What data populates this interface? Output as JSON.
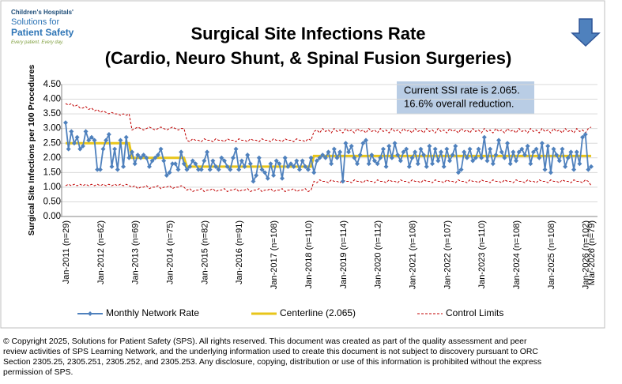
{
  "logo": {
    "line1": "Children's Hospitals'",
    "line2": "Solutions for",
    "line3": "Patient Safety",
    "tagline": "Every patient. Every day."
  },
  "chart_data": {
    "type": "line",
    "title": "Surgical Site Infections Rate",
    "subtitle": "(Cardio, Neuro Shunt, & Spinal Fusion Surgeries)",
    "y_label": "Surgical Site Infections  per 100 Procedures",
    "annotation": [
      "Current SSI rate is 2.065.",
      "16.6% overall reduction."
    ],
    "ylim": [
      0,
      4.5
    ],
    "yticks": [
      {
        "value": 0,
        "label": "0.00"
      },
      {
        "value": 0.5,
        "label": "0.50"
      },
      {
        "value": 1,
        "label": "1.00"
      },
      {
        "value": 1.5,
        "label": "1.50"
      },
      {
        "value": 2,
        "label": "2.00"
      },
      {
        "value": 2.5,
        "label": "2.50"
      },
      {
        "value": 3,
        "label": "3.00"
      },
      {
        "value": 3.5,
        "label": "3.50"
      },
      {
        "value": 4,
        "label": "4.00"
      },
      {
        "value": 4.5,
        "label": "4.50"
      }
    ],
    "grid": true,
    "categories": [
      "Jan-2011 (n=29)",
      null,
      null,
      null,
      null,
      null,
      null,
      null,
      null,
      null,
      null,
      null,
      "Jan-2012 (n=62)",
      null,
      null,
      null,
      null,
      null,
      null,
      null,
      null,
      null,
      null,
      null,
      "Jan-2013 (n=69)",
      null,
      null,
      null,
      null,
      null,
      null,
      null,
      null,
      null,
      null,
      null,
      "Jan-2014 (n=75)",
      null,
      null,
      null,
      null,
      null,
      null,
      null,
      null,
      null,
      null,
      null,
      "Jan-2015 (n=82)",
      null,
      null,
      null,
      null,
      null,
      null,
      null,
      null,
      null,
      null,
      null,
      "Jan-2016 (n=91)",
      null,
      null,
      null,
      null,
      null,
      null,
      null,
      null,
      null,
      null,
      null,
      "Jan-2017 (n=108)",
      null,
      null,
      null,
      null,
      null,
      null,
      null,
      null,
      null,
      null,
      null,
      "Jan-2018 (n=110)",
      null,
      null,
      null,
      null,
      null,
      null,
      null,
      null,
      null,
      null,
      null,
      "Jan-2019 (n=114)",
      null,
      null,
      null,
      null,
      null,
      null,
      null,
      null,
      null,
      null,
      null,
      "Jan-2020 (n=112)",
      null,
      null,
      null,
      null,
      null,
      null,
      null,
      null,
      null,
      null,
      null,
      "Jan-2021 (n=108)",
      null,
      null,
      null,
      null,
      null,
      null,
      null,
      null,
      null,
      null,
      null,
      "Jan-2022 (n=107)",
      null,
      null,
      null,
      null,
      null,
      null,
      null,
      null,
      null,
      null,
      null,
      "Jan-2023 (n=110)",
      null,
      null,
      null,
      null,
      null,
      null,
      null,
      null,
      null,
      null,
      null,
      "Jan-2024 (n=108)",
      null,
      null,
      null,
      null,
      null,
      null,
      null,
      null,
      null,
      null,
      null,
      "Jan-2025 (n=108)",
      null,
      null,
      null,
      null,
      null,
      null,
      null,
      null,
      null,
      null,
      null,
      "Jan-2026 (n=102)",
      null,
      "Mar-2026 (n=79)"
    ],
    "series": [
      {
        "name": "Monthly Network Rate",
        "color": "#4f81bd",
        "marker": "diamond",
        "values": [
          3.2,
          2.3,
          2.9,
          2.5,
          2.7,
          2.3,
          2.4,
          2.9,
          2.6,
          2.7,
          2.6,
          1.6,
          1.6,
          2.3,
          2.6,
          2.8,
          1.7,
          2.3,
          1.6,
          2.6,
          1.7,
          2.7,
          2.0,
          2.2,
          1.8,
          2.1,
          2.0,
          2.1,
          2.0,
          1.7,
          1.9,
          2.0,
          2.1,
          2.3,
          1.9,
          1.4,
          1.5,
          1.8,
          1.8,
          1.6,
          2.2,
          1.8,
          1.6,
          1.7,
          1.9,
          1.8,
          1.6,
          1.6,
          1.9,
          2.2,
          1.6,
          1.9,
          1.7,
          1.6,
          2.0,
          1.9,
          1.7,
          1.6,
          2.0,
          2.3,
          1.6,
          1.9,
          1.7,
          2.1,
          1.8,
          1.2,
          1.4,
          2.0,
          1.6,
          1.5,
          1.3,
          1.8,
          1.4,
          1.9,
          1.8,
          1.3,
          2.0,
          1.7,
          1.8,
          1.7,
          1.9,
          1.6,
          1.9,
          1.7,
          1.6,
          2.0,
          1.5,
          1.9,
          2.0,
          2.1,
          2.0,
          2.2,
          1.8,
          2.3,
          2.0,
          2.2,
          1.2,
          2.5,
          2.2,
          2.4,
          2.0,
          1.8,
          2.1,
          2.5,
          2.6,
          1.8,
          2.1,
          1.9,
          1.8,
          2.0,
          2.3,
          1.7,
          2.4,
          2.0,
          2.5,
          2.1,
          1.9,
          2.2,
          2.3,
          1.7,
          2.0,
          2.2,
          1.8,
          2.3,
          2.1,
          1.7,
          2.4,
          1.8,
          2.3,
          1.9,
          2.2,
          1.7,
          2.3,
          1.9,
          2.1,
          2.4,
          1.5,
          1.6,
          2.2,
          2.0,
          2.3,
          1.9,
          2.0,
          2.3,
          2.0,
          2.7,
          1.9,
          2.3,
          1.8,
          2.1,
          2.6,
          2.2,
          2.0,
          2.5,
          1.8,
          2.2,
          1.9,
          2.2,
          2.3,
          2.1,
          2.4,
          1.8,
          2.2,
          2.3,
          2.0,
          2.5,
          1.6,
          2.4,
          1.5,
          2.3,
          2.1,
          1.9,
          2.3,
          1.7,
          2.0,
          2.2,
          1.6,
          2.2,
          1.8,
          2.7,
          2.8,
          1.6,
          1.7
        ]
      },
      {
        "name": "Centerline (2.065)",
        "color": "#e8c51a",
        "values": [
          2.5,
          2.5,
          2.5,
          2.5,
          2.5,
          2.5,
          2.5,
          2.5,
          2.5,
          2.5,
          2.5,
          2.5,
          2.5,
          2.5,
          2.5,
          2.5,
          2.5,
          2.5,
          2.5,
          2.5,
          2.5,
          2.5,
          2.5,
          2.0,
          2.0,
          2.0,
          2.0,
          2.0,
          2.0,
          2.0,
          2.0,
          2.0,
          2.0,
          2.0,
          2.0,
          2.0,
          2.0,
          2.0,
          2.0,
          2.0,
          2.0,
          2.0,
          1.7,
          1.7,
          1.7,
          1.7,
          1.7,
          1.7,
          1.7,
          1.7,
          1.7,
          1.7,
          1.7,
          1.7,
          1.7,
          1.7,
          1.7,
          1.7,
          1.7,
          1.7,
          1.7,
          1.7,
          1.7,
          1.7,
          1.7,
          1.7,
          1.7,
          1.7,
          1.7,
          1.7,
          1.7,
          1.7,
          1.7,
          1.7,
          1.7,
          1.7,
          1.7,
          1.7,
          1.7,
          1.7,
          1.7,
          1.7,
          1.7,
          1.7,
          1.7,
          1.7,
          2.065,
          2.065,
          2.065,
          2.065,
          2.065,
          2.065,
          2.065,
          2.065,
          2.065,
          2.065,
          2.065,
          2.065,
          2.065,
          2.065,
          2.065,
          2.065,
          2.065,
          2.065,
          2.065,
          2.065,
          2.065,
          2.065,
          2.065,
          2.065,
          2.065,
          2.065,
          2.065,
          2.065,
          2.065,
          2.065,
          2.065,
          2.065,
          2.065,
          2.065,
          2.065,
          2.065,
          2.065,
          2.065,
          2.065,
          2.065,
          2.065,
          2.065,
          2.065,
          2.065,
          2.065,
          2.065,
          2.065,
          2.065,
          2.065,
          2.065,
          2.065,
          2.065,
          2.065,
          2.065,
          2.065,
          2.065,
          2.065,
          2.065,
          2.065,
          2.065,
          2.065,
          2.065,
          2.065,
          2.065,
          2.065,
          2.065,
          2.065,
          2.065,
          2.065,
          2.065,
          2.065,
          2.065,
          2.065,
          2.065,
          2.065,
          2.065,
          2.065,
          2.065,
          2.065,
          2.065,
          2.065,
          2.065,
          2.065,
          2.065,
          2.065,
          2.065,
          2.065,
          2.065,
          2.065,
          2.065,
          2.065,
          2.065,
          2.065,
          2.065,
          2.065,
          2.065,
          2.065
        ]
      },
      {
        "name": "Control Limits",
        "color": "#c00000",
        "dashed": true,
        "upper": [
          3.85,
          3.8,
          3.85,
          3.75,
          3.8,
          3.7,
          3.7,
          3.75,
          3.65,
          3.7,
          3.6,
          3.65,
          3.55,
          3.6,
          3.55,
          3.5,
          3.55,
          3.5,
          3.5,
          3.45,
          3.5,
          3.45,
          3.5,
          2.95,
          3.0,
          3.05,
          3.0,
          2.95,
          3.0,
          3.05,
          3.0,
          2.95,
          3.0,
          3.05,
          3.0,
          2.95,
          3.0,
          3.05,
          3.0,
          2.95,
          3.0,
          3.0,
          2.6,
          2.55,
          2.65,
          2.6,
          2.6,
          2.55,
          2.65,
          2.6,
          2.6,
          2.55,
          2.65,
          2.6,
          2.6,
          2.55,
          2.65,
          2.6,
          2.6,
          2.55,
          2.65,
          2.6,
          2.6,
          2.55,
          2.65,
          2.6,
          2.6,
          2.55,
          2.65,
          2.6,
          2.6,
          2.55,
          2.65,
          2.6,
          2.6,
          2.55,
          2.65,
          2.6,
          2.6,
          2.55,
          2.65,
          2.6,
          2.6,
          2.55,
          2.65,
          2.6,
          2.9,
          2.95,
          2.85,
          3.0,
          2.9,
          2.95,
          2.85,
          3.0,
          2.9,
          2.95,
          2.85,
          3.0,
          2.9,
          2.95,
          2.85,
          3.0,
          2.9,
          2.95,
          2.85,
          3.0,
          2.9,
          2.95,
          2.85,
          3.0,
          2.9,
          2.95,
          2.85,
          3.0,
          2.9,
          2.95,
          2.85,
          3.0,
          2.9,
          2.95,
          2.85,
          3.0,
          2.9,
          2.95,
          2.85,
          3.0,
          2.9,
          2.95,
          2.85,
          3.0,
          2.9,
          2.95,
          2.85,
          3.0,
          2.9,
          2.95,
          2.85,
          3.0,
          2.9,
          2.95,
          2.85,
          3.0,
          2.9,
          2.95,
          2.85,
          3.0,
          2.9,
          2.95,
          2.85,
          3.0,
          2.9,
          2.95,
          2.85,
          3.0,
          2.9,
          2.95,
          2.85,
          3.0,
          2.9,
          2.95,
          2.85,
          3.0,
          2.9,
          2.95,
          2.85,
          3.0,
          2.9,
          2.95,
          2.85,
          3.0,
          2.9,
          2.95,
          2.85,
          3.0,
          2.9,
          2.95,
          2.85,
          3.0,
          2.9,
          2.95,
          2.85,
          3.0,
          3.05
        ],
        "lower": [
          1.05,
          1.1,
          1.05,
          1.1,
          1.05,
          1.1,
          1.05,
          1.1,
          1.05,
          1.1,
          1.05,
          1.1,
          1.05,
          1.1,
          1.05,
          1.1,
          1.05,
          1.1,
          1.05,
          1.1,
          1.05,
          1.1,
          1.05,
          1.0,
          1.05,
          0.95,
          1.0,
          1.0,
          1.05,
          0.95,
          1.0,
          1.0,
          1.05,
          0.95,
          1.0,
          1.0,
          1.05,
          0.95,
          1.0,
          1.0,
          1.05,
          1.0,
          0.9,
          0.95,
          0.85,
          0.9,
          0.9,
          0.95,
          0.85,
          0.9,
          0.9,
          0.95,
          0.85,
          0.9,
          0.9,
          0.95,
          0.85,
          0.9,
          0.9,
          0.95,
          0.85,
          0.9,
          0.9,
          0.95,
          0.85,
          0.9,
          0.9,
          0.95,
          0.85,
          0.9,
          0.9,
          0.95,
          0.85,
          0.9,
          0.9,
          0.95,
          0.85,
          0.9,
          0.9,
          0.95,
          0.85,
          0.9,
          0.9,
          0.95,
          0.85,
          0.9,
          1.2,
          1.15,
          1.25,
          1.2,
          1.2,
          1.15,
          1.25,
          1.2,
          1.2,
          1.15,
          1.25,
          1.2,
          1.2,
          1.15,
          1.25,
          1.2,
          1.2,
          1.15,
          1.25,
          1.2,
          1.2,
          1.15,
          1.25,
          1.2,
          1.2,
          1.15,
          1.25,
          1.2,
          1.2,
          1.15,
          1.25,
          1.2,
          1.2,
          1.15,
          1.25,
          1.2,
          1.2,
          1.15,
          1.25,
          1.2,
          1.2,
          1.15,
          1.25,
          1.2,
          1.2,
          1.15,
          1.25,
          1.2,
          1.2,
          1.15,
          1.25,
          1.2,
          1.2,
          1.15,
          1.25,
          1.2,
          1.2,
          1.15,
          1.25,
          1.2,
          1.2,
          1.15,
          1.25,
          1.2,
          1.2,
          1.15,
          1.25,
          1.2,
          1.2,
          1.15,
          1.25,
          1.2,
          1.2,
          1.15,
          1.25,
          1.2,
          1.2,
          1.15,
          1.25,
          1.2,
          1.2,
          1.15,
          1.25,
          1.2,
          1.2,
          1.15,
          1.25,
          1.2,
          1.2,
          1.15,
          1.25,
          1.2,
          1.2,
          1.15,
          1.25,
          1.2,
          1.05
        ]
      }
    ]
  },
  "copyright": {
    "lines": [
      "© Copyright 2025, Solutions for Patient Safety (SPS).  All rights reserved.  This document was created as part of the quality assessment and peer",
      "review activities of SPS Learning Network, and the underlying information used to create this document is not subject to discovery pursuant to ORC",
      "Section 2305.25, 2305.251, 2305.252, and 2305.253. Any disclosure, copying, distribution or use of this information is prohibited without the express",
      "permission of SPS."
    ]
  }
}
